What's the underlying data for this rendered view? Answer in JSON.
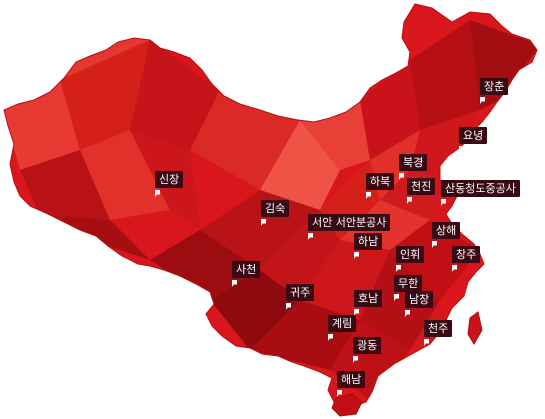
{
  "map": {
    "colors": {
      "base": "#d8161b",
      "dark": "#a30e12",
      "darker": "#8e0a0e",
      "light": "#e63a32",
      "lighter": "#ef5346",
      "outline": "#c01015",
      "label_bg": "#3a0a14",
      "label_text": "#ffffff"
    },
    "pins": [
      {
        "id": "changchun",
        "label": "장춘"
      },
      {
        "id": "liaoning",
        "label": "요녕"
      },
      {
        "id": "beijing",
        "label": "북경"
      },
      {
        "id": "hebei",
        "label": "하북"
      },
      {
        "id": "tianjin",
        "label": "천진"
      },
      {
        "id": "shandong",
        "label": "산동청도중공사"
      },
      {
        "id": "xinjiang",
        "label": "신장"
      },
      {
        "id": "gansu",
        "label": "김숙"
      },
      {
        "id": "xian",
        "label": "서안 서안분공사"
      },
      {
        "id": "henan",
        "label": "하남"
      },
      {
        "id": "shanghai",
        "label": "상해"
      },
      {
        "id": "anhui",
        "label": "인휘"
      },
      {
        "id": "changzhou",
        "label": "창주"
      },
      {
        "id": "sichuan",
        "label": "사천"
      },
      {
        "id": "guizhou",
        "label": "귀주"
      },
      {
        "id": "wuhan",
        "label": "무한"
      },
      {
        "id": "hunan",
        "label": "호남"
      },
      {
        "id": "nanchang",
        "label": "남창"
      },
      {
        "id": "guilin",
        "label": "계림"
      },
      {
        "id": "quanzhou",
        "label": "천주"
      },
      {
        "id": "guangdong",
        "label": "광동"
      },
      {
        "id": "hainan",
        "label": "해남"
      }
    ]
  }
}
